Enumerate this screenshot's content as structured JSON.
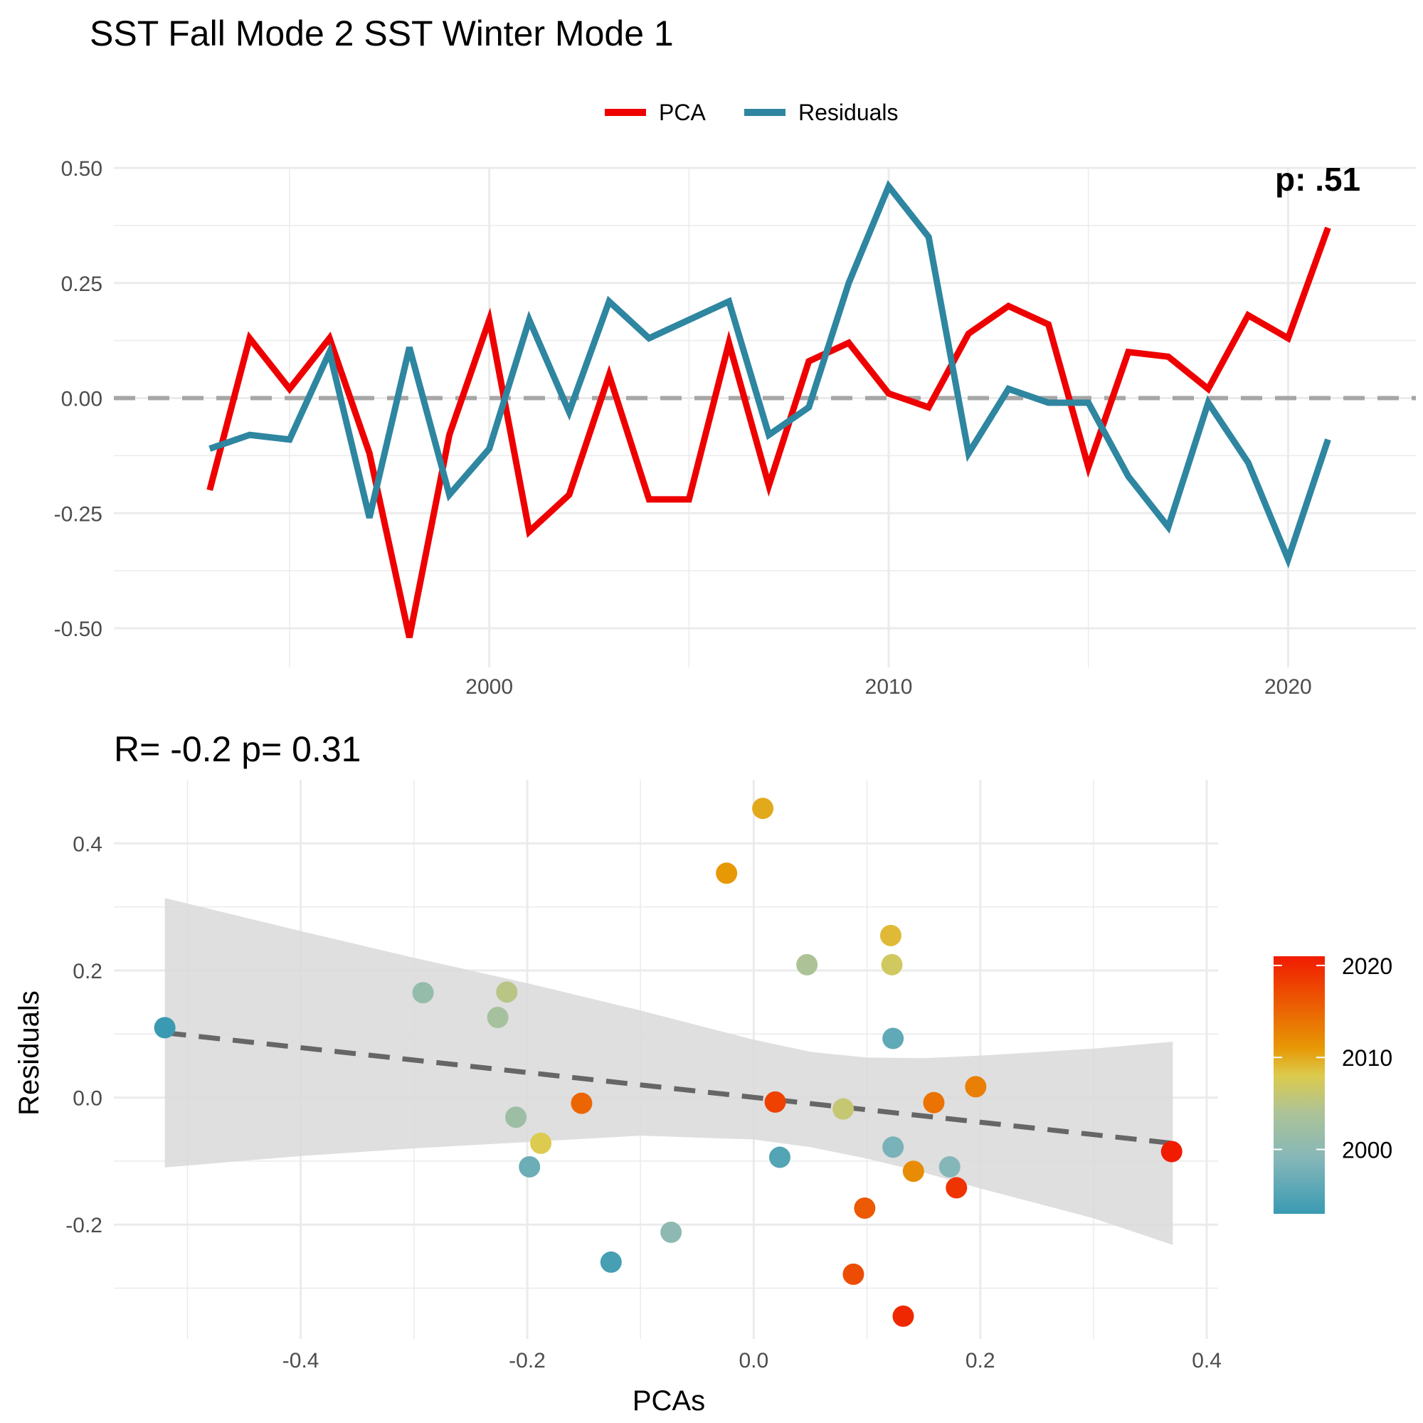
{
  "figure_title": "SST Fall Mode 2 SST Winter Mode 1",
  "colors": {
    "pca": "#EE0000",
    "residuals": "#2E86A0",
    "zero_line": "#A6A6A6",
    "grid": "#EBEBEB",
    "fit_line": "#666666",
    "ribbon": "#D9D9D9",
    "colorbar_low": "#3A9AB2",
    "colorbar_mid_low": "#85B7B9",
    "colorbar_mid": "#ADC397",
    "colorbar_mid_high": "#DCCB4E",
    "colorbar_orange": "#E79805",
    "colorbar_high": "#F11B00"
  },
  "chart_data": [
    {
      "type": "line",
      "title": "",
      "corner_label": "p: .51",
      "legend": {
        "position": "top",
        "entries": [
          "PCA",
          "Residuals"
        ]
      },
      "x": [
        1993,
        1994,
        1995,
        1996,
        1997,
        1998,
        1999,
        2000,
        2001,
        2002,
        2003,
        2004,
        2005,
        2006,
        2007,
        2008,
        2009,
        2010,
        2011,
        2012,
        2013,
        2014,
        2015,
        2016,
        2017,
        2018,
        2019,
        2020,
        2021
      ],
      "series": [
        {
          "name": "PCA",
          "values": [
            -0.2,
            0.13,
            0.02,
            0.13,
            -0.12,
            -0.52,
            -0.08,
            0.17,
            -0.29,
            -0.21,
            0.05,
            -0.22,
            -0.22,
            0.12,
            -0.19,
            0.08,
            0.12,
            0.01,
            -0.02,
            0.14,
            0.2,
            0.16,
            -0.15,
            0.1,
            0.09,
            0.02,
            0.18,
            0.13,
            0.37
          ]
        },
        {
          "name": "Residuals",
          "values": [
            -0.11,
            -0.08,
            -0.09,
            0.1,
            -0.26,
            0.11,
            -0.21,
            -0.11,
            0.17,
            -0.03,
            0.21,
            0.13,
            0.17,
            0.21,
            -0.08,
            -0.02,
            0.25,
            0.46,
            0.35,
            -0.12,
            0.02,
            -0.01,
            -0.01,
            -0.17,
            -0.28,
            -0.01,
            -0.14,
            -0.35,
            -0.09
          ]
        }
      ],
      "xlabel": "",
      "ylabel": "",
      "xlim": [
        1990.6,
        2023.2
      ],
      "ylim": [
        -0.585,
        0.5
      ],
      "x_ticks": [
        "2000",
        "2010",
        "2020"
      ],
      "y_ticks": [
        "-0.50",
        "-0.25",
        "0.00",
        "0.25",
        "0.50"
      ],
      "zero_line": true,
      "grid": true
    },
    {
      "type": "scatter",
      "title": "R= -0.2  p= 0.31",
      "xlabel": "PCAs",
      "ylabel": "Residuals",
      "xlim": [
        -0.565,
        0.41
      ],
      "ylim": [
        -0.38,
        0.5
      ],
      "x_ticks": [
        "-0.4",
        "-0.2",
        "0.0",
        "0.2",
        "0.4"
      ],
      "y_ticks": [
        "-0.2",
        "0.0",
        "0.2",
        "0.4"
      ],
      "grid": true,
      "points": [
        {
          "year": 1993,
          "x": -0.52,
          "y": 0.11
        },
        {
          "year": 1994,
          "x": -0.126,
          "y": -0.259
        },
        {
          "year": 1995,
          "x": 0.023,
          "y": -0.094
        },
        {
          "year": 1996,
          "x": 0.123,
          "y": 0.093
        },
        {
          "year": 1997,
          "x": -0.198,
          "y": -0.109
        },
        {
          "year": 1998,
          "x": 0.123,
          "y": -0.078
        },
        {
          "year": 1999,
          "x": 0.173,
          "y": -0.109
        },
        {
          "year": 2000,
          "x": -0.073,
          "y": -0.212
        },
        {
          "year": 2001,
          "x": -0.292,
          "y": 0.165
        },
        {
          "year": 2002,
          "x": -0.21,
          "y": -0.031
        },
        {
          "year": 2003,
          "x": -0.226,
          "y": 0.126
        },
        {
          "year": 2004,
          "x": 0.047,
          "y": 0.209
        },
        {
          "year": 2005,
          "x": -0.218,
          "y": 0.166
        },
        {
          "year": 2006,
          "x": 0.079,
          "y": -0.018
        },
        {
          "year": 2007,
          "x": 0.122,
          "y": 0.209
        },
        {
          "year": 2008,
          "x": -0.188,
          "y": -0.072
        },
        {
          "year": 2009,
          "x": 0.121,
          "y": 0.255
        },
        {
          "year": 2010,
          "x": 0.008,
          "y": 0.455
        },
        {
          "year": 2011,
          "x": -0.024,
          "y": 0.353
        },
        {
          "year": 2012,
          "x": 0.141,
          "y": -0.116
        },
        {
          "year": 2013,
          "x": 0.196,
          "y": 0.017
        },
        {
          "year": 2014,
          "x": 0.159,
          "y": -0.008
        },
        {
          "year": 2015,
          "x": -0.152,
          "y": -0.009
        },
        {
          "year": 2016,
          "x": 0.098,
          "y": -0.174
        },
        {
          "year": 2017,
          "x": 0.088,
          "y": -0.278
        },
        {
          "year": 2018,
          "x": 0.019,
          "y": -0.007
        },
        {
          "year": 2019,
          "x": 0.179,
          "y": -0.142
        },
        {
          "year": 2020,
          "x": 0.132,
          "y": -0.344
        },
        {
          "year": 2021,
          "x": 0.369,
          "y": -0.085
        }
      ],
      "fit": {
        "x": [
          -0.52,
          0.37
        ],
        "y": [
          0.102,
          -0.072
        ]
      },
      "ribbon": {
        "x": [
          -0.52,
          -0.4,
          -0.3,
          -0.2,
          -0.1,
          0.0,
          0.05,
          0.1,
          0.15,
          0.2,
          0.3,
          0.37
        ],
        "upper": [
          0.314,
          0.262,
          0.22,
          0.18,
          0.137,
          0.091,
          0.072,
          0.063,
          0.062,
          0.066,
          0.077,
          0.088
        ],
        "lower": [
          -0.11,
          -0.092,
          -0.08,
          -0.07,
          -0.06,
          -0.066,
          -0.078,
          -0.096,
          -0.118,
          -0.143,
          -0.19,
          -0.232
        ]
      },
      "colorbar": {
        "title": "",
        "min": 1993,
        "max": 2021,
        "ticks": [
          2000,
          2010,
          2020
        ],
        "tick_labels": [
          "2000",
          "2010",
          "2020"
        ],
        "palette_stops": [
          1993,
          2000,
          2005,
          2008,
          2011,
          2016,
          2021
        ]
      }
    }
  ]
}
